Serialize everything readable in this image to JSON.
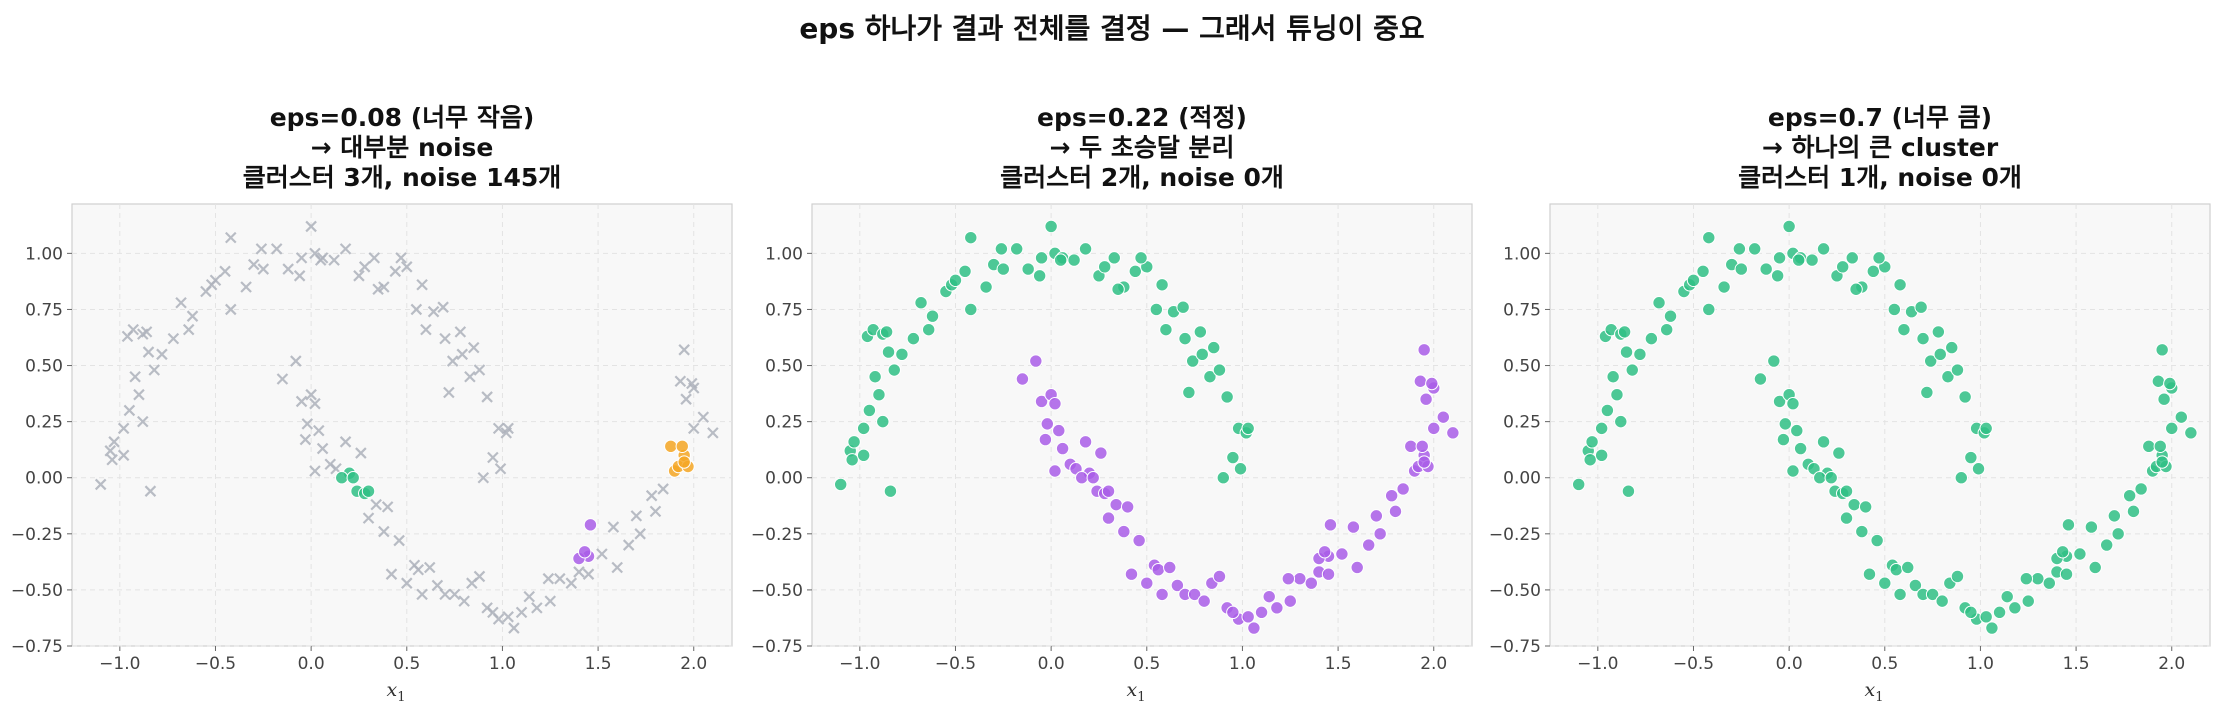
{
  "suptitle": "eps 하나가 결과 전체를 결정 — 그래서 튜닝이 중요",
  "colors": {
    "noise": "#aeb2bc",
    "cluster_0": "#2fbf85",
    "cluster_1": "#a95de8",
    "cluster_2": "#f5a623",
    "panel_bg": "#f8f8f8"
  },
  "chart_data": [
    {
      "type": "scatter",
      "title_lines": [
        "eps=0.08 (너무 작음)",
        "→ 대부분 noise",
        "클러스터 3개, noise 145개"
      ],
      "xlabel": "x",
      "xlabel_sub": "1",
      "xlim": [
        -1.25,
        2.2
      ],
      "ylim": [
        -0.75,
        1.22
      ],
      "xticks": [
        -1.0,
        -0.5,
        0.0,
        0.5,
        1.0,
        1.5,
        2.0
      ],
      "xtick_labels": [
        "−1.0",
        "−0.5",
        "0.0",
        "0.5",
        "1.0",
        "1.5",
        "2.0"
      ],
      "yticks": [
        -0.75,
        -0.5,
        -0.25,
        0.0,
        0.25,
        0.5,
        0.75,
        1.0
      ],
      "ytick_labels": [
        "−0.75",
        "−0.50",
        "−0.25",
        "0.00",
        "0.25",
        "0.50",
        "0.75",
        "1.00"
      ],
      "grid": true,
      "mode": "eps_small"
    },
    {
      "type": "scatter",
      "title_lines": [
        "eps=0.22 (적정)",
        "→ 두 초승달 분리",
        "클러스터 2개, noise 0개"
      ],
      "xlabel": "x",
      "xlabel_sub": "1",
      "xlim": [
        -1.25,
        2.2
      ],
      "ylim": [
        -0.75,
        1.22
      ],
      "xticks": [
        -1.0,
        -0.5,
        0.0,
        0.5,
        1.0,
        1.5,
        2.0
      ],
      "xtick_labels": [
        "−1.0",
        "−0.5",
        "0.0",
        "0.5",
        "1.0",
        "1.5",
        "2.0"
      ],
      "yticks": [
        -0.75,
        -0.5,
        -0.25,
        0.0,
        0.25,
        0.5,
        0.75,
        1.0
      ],
      "ytick_labels": [
        "−0.75",
        "−0.50",
        "−0.25",
        "0.00",
        "0.25",
        "0.50",
        "0.75",
        "1.00"
      ],
      "grid": true,
      "mode": "eps_good"
    },
    {
      "type": "scatter",
      "title_lines": [
        "eps=0.7 (너무 큼)",
        "→ 하나의 큰 cluster",
        "클러스터 1개, noise 0개"
      ],
      "xlabel": "x",
      "xlabel_sub": "1",
      "xlim": [
        -1.25,
        2.2
      ],
      "ylim": [
        -0.75,
        1.22
      ],
      "xticks": [
        -1.0,
        -0.5,
        0.0,
        0.5,
        1.0,
        1.5,
        2.0
      ],
      "xtick_labels": [
        "−1.0",
        "−0.5",
        "0.0",
        "0.5",
        "1.0",
        "1.5",
        "2.0"
      ],
      "yticks": [
        -0.75,
        -0.5,
        -0.25,
        0.0,
        0.25,
        0.5,
        0.75,
        1.0
      ],
      "ytick_labels": [
        "−0.75",
        "−0.50",
        "−0.25",
        "0.00",
        "0.25",
        "0.50",
        "0.75",
        "1.00"
      ],
      "grid": true,
      "mode": "eps_large"
    }
  ],
  "points": {
    "upper_moon": [
      [
        -1.1,
        -0.03
      ],
      [
        -1.05,
        0.12
      ],
      [
        -1.03,
        0.16
      ],
      [
        -1.04,
        0.08
      ],
      [
        -0.98,
        0.22
      ],
      [
        -0.95,
        0.3
      ],
      [
        -0.9,
        0.37
      ],
      [
        -0.88,
        0.25
      ],
      [
        -0.92,
        0.45
      ],
      [
        -0.85,
        0.56
      ],
      [
        -0.82,
        0.48
      ],
      [
        -0.96,
        0.63
      ],
      [
        -0.93,
        0.66
      ],
      [
        -0.88,
        0.64
      ],
      [
        -0.78,
        0.55
      ],
      [
        -0.72,
        0.62
      ],
      [
        -0.68,
        0.78
      ],
      [
        -0.62,
        0.72
      ],
      [
        -0.55,
        0.83
      ],
      [
        -0.52,
        0.86
      ],
      [
        -0.45,
        0.92
      ],
      [
        -0.42,
        0.75
      ],
      [
        -0.5,
        0.88
      ],
      [
        -0.42,
        1.07
      ],
      [
        -0.3,
        0.95
      ],
      [
        -0.26,
        1.02
      ],
      [
        -0.18,
        1.02
      ],
      [
        -0.12,
        0.93
      ],
      [
        -0.05,
        0.98
      ],
      [
        0.02,
        1.0
      ],
      [
        0.06,
        0.98
      ],
      [
        0.12,
        0.97
      ],
      [
        0.18,
        1.02
      ],
      [
        0.25,
        0.9
      ],
      [
        0.33,
        0.98
      ],
      [
        0.38,
        0.85
      ],
      [
        0.44,
        0.92
      ],
      [
        0.5,
        0.94
      ],
      [
        0.55,
        0.75
      ],
      [
        0.6,
        0.66
      ],
      [
        0.64,
        0.74
      ],
      [
        0.7,
        0.62
      ],
      [
        0.74,
        0.52
      ],
      [
        0.79,
        0.55
      ],
      [
        0.83,
        0.45
      ],
      [
        0.88,
        0.48
      ],
      [
        0.92,
        0.36
      ],
      [
        0.98,
        0.22
      ],
      [
        1.02,
        0.2
      ],
      [
        1.03,
        0.22
      ],
      [
        0.95,
        0.09
      ],
      [
        0.99,
        0.04
      ],
      [
        0.9,
        0.0
      ],
      [
        0.85,
        0.58
      ],
      [
        0.78,
        0.65
      ],
      [
        0.58,
        0.86
      ],
      [
        0.35,
        0.84
      ],
      [
        0.05,
        0.97
      ],
      [
        0.0,
        1.12
      ],
      [
        -0.06,
        0.9
      ],
      [
        -0.25,
        0.93
      ],
      [
        -0.64,
        0.66
      ],
      [
        -0.98,
        0.1
      ],
      [
        -0.86,
        0.65
      ],
      [
        0.72,
        0.38
      ],
      [
        0.69,
        0.76
      ],
      [
        -0.34,
        0.85
      ],
      [
        0.47,
        0.98
      ],
      [
        0.28,
        0.94
      ],
      [
        -0.84,
        -0.06
      ]
    ],
    "lower_moon": [
      [
        -0.15,
        0.44
      ],
      [
        -0.08,
        0.52
      ],
      [
        -0.05,
        0.34
      ],
      [
        0.0,
        0.37
      ],
      [
        0.02,
        0.33
      ],
      [
        -0.02,
        0.24
      ],
      [
        0.04,
        0.21
      ],
      [
        0.06,
        0.13
      ],
      [
        -0.03,
        0.17
      ],
      [
        0.1,
        0.06
      ],
      [
        0.02,
        0.03
      ],
      [
        0.13,
        0.04
      ],
      [
        0.18,
        0.16
      ],
      [
        0.2,
        0.02
      ],
      [
        0.24,
        -0.06
      ],
      [
        0.28,
        -0.07
      ],
      [
        0.3,
        -0.06
      ],
      [
        0.26,
        0.11
      ],
      [
        0.34,
        -0.12
      ],
      [
        0.3,
        -0.18
      ],
      [
        0.38,
        -0.24
      ],
      [
        0.4,
        -0.13
      ],
      [
        0.46,
        -0.28
      ],
      [
        0.42,
        -0.43
      ],
      [
        0.5,
        -0.47
      ],
      [
        0.54,
        -0.39
      ],
      [
        0.56,
        -0.41
      ],
      [
        0.62,
        -0.4
      ],
      [
        0.66,
        -0.48
      ],
      [
        0.7,
        -0.52
      ],
      [
        0.75,
        -0.52
      ],
      [
        0.8,
        -0.55
      ],
      [
        0.84,
        -0.47
      ],
      [
        0.88,
        -0.44
      ],
      [
        0.92,
        -0.58
      ],
      [
        0.98,
        -0.63
      ],
      [
        1.03,
        -0.62
      ],
      [
        1.06,
        -0.67
      ],
      [
        1.1,
        -0.6
      ],
      [
        1.14,
        -0.53
      ],
      [
        1.18,
        -0.58
      ],
      [
        1.25,
        -0.55
      ],
      [
        1.3,
        -0.45
      ],
      [
        1.36,
        -0.47
      ],
      [
        1.4,
        -0.42
      ],
      [
        1.45,
        -0.43
      ],
      [
        1.52,
        -0.34
      ],
      [
        1.6,
        -0.4
      ],
      [
        1.66,
        -0.3
      ],
      [
        1.72,
        -0.25
      ],
      [
        1.7,
        -0.17
      ],
      [
        1.78,
        -0.08
      ],
      [
        1.84,
        -0.05
      ],
      [
        1.9,
        0.03
      ],
      [
        1.92,
        0.05
      ],
      [
        1.95,
        0.1
      ],
      [
        2.0,
        0.22
      ],
      [
        1.96,
        0.35
      ],
      [
        2.0,
        0.4
      ],
      [
        1.93,
        0.43
      ],
      [
        1.95,
        0.57
      ],
      [
        2.05,
        0.27
      ],
      [
        2.1,
        0.2
      ],
      [
        1.88,
        0.14
      ],
      [
        1.8,
        -0.15
      ],
      [
        1.58,
        -0.22
      ],
      [
        1.24,
        -0.45
      ],
      [
        0.95,
        -0.6
      ],
      [
        0.58,
        -0.52
      ],
      [
        0.16,
        0.0
      ],
      [
        0.22,
        0.0
      ],
      [
        1.45,
        -0.35
      ],
      [
        1.4,
        -0.36
      ],
      [
        1.43,
        -0.33
      ],
      [
        1.46,
        -0.21
      ],
      [
        1.94,
        0.14
      ],
      [
        1.97,
        0.05
      ],
      [
        1.95,
        0.07
      ],
      [
        1.99,
        0.42
      ]
    ]
  }
}
